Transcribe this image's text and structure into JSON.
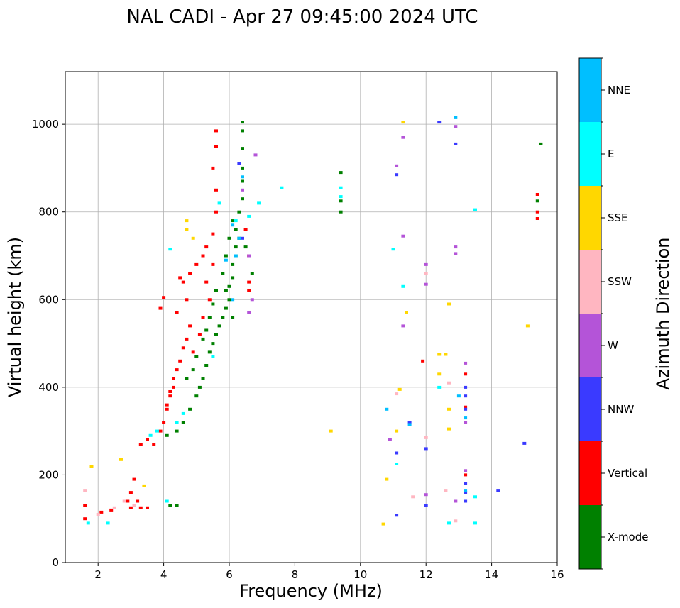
{
  "chart_data": {
    "type": "scatter",
    "title": "NAL CADI - Apr 27 09:45:00 2024 UTC",
    "xlabel": "Frequency (MHz)",
    "ylabel": "Virtual height (km)",
    "xlim": [
      1,
      16
    ],
    "ylim": [
      0,
      1120
    ],
    "xticks": [
      2,
      4,
      6,
      8,
      10,
      12,
      14,
      16
    ],
    "yticks": [
      0,
      200,
      400,
      600,
      800,
      1000
    ],
    "grid": true,
    "colorbar": {
      "label": "Azimuth Direction",
      "categories": [
        "X-mode",
        "Vertical",
        "NNW",
        "W",
        "SSW",
        "SSE",
        "E",
        "NNE"
      ],
      "colors": [
        "#008000",
        "#ff0000",
        "#3a3aff",
        "#b454d8",
        "#ffb6c1",
        "#ffd700",
        "#00ffff",
        "#00bfff"
      ]
    },
    "series": [
      {
        "name": "X-mode",
        "points": [
          [
            4.2,
            130
          ],
          [
            4.4,
            130
          ],
          [
            4.1,
            290
          ],
          [
            4.4,
            300
          ],
          [
            4.6,
            320
          ],
          [
            4.8,
            350
          ],
          [
            5.0,
            380
          ],
          [
            5.1,
            400
          ],
          [
            5.2,
            420
          ],
          [
            5.3,
            450
          ],
          [
            5.4,
            480
          ],
          [
            5.5,
            500
          ],
          [
            5.6,
            520
          ],
          [
            5.7,
            540
          ],
          [
            5.8,
            560
          ],
          [
            5.9,
            580
          ],
          [
            6.0,
            600
          ],
          [
            6.0,
            630
          ],
          [
            6.1,
            650
          ],
          [
            6.1,
            680
          ],
          [
            6.2,
            700
          ],
          [
            6.2,
            720
          ],
          [
            6.3,
            740
          ],
          [
            6.2,
            760
          ],
          [
            6.1,
            780
          ],
          [
            6.3,
            800
          ],
          [
            6.4,
            830
          ],
          [
            6.4,
            870
          ],
          [
            6.4,
            900
          ],
          [
            6.4,
            945
          ],
          [
            6.4,
            985
          ],
          [
            6.4,
            1005
          ],
          [
            5.9,
            700
          ],
          [
            5.8,
            660
          ],
          [
            5.6,
            620
          ],
          [
            5.5,
            590
          ],
          [
            5.4,
            560
          ],
          [
            5.3,
            530
          ],
          [
            5.2,
            510
          ],
          [
            5.0,
            470
          ],
          [
            4.9,
            440
          ],
          [
            4.7,
            420
          ],
          [
            5.9,
            620
          ],
          [
            6.1,
            560
          ],
          [
            6.0,
            740
          ],
          [
            6.5,
            720
          ],
          [
            6.7,
            660
          ],
          [
            9.4,
            890
          ],
          [
            9.4,
            825
          ],
          [
            9.4,
            800
          ],
          [
            15.4,
            825
          ],
          [
            15.5,
            955
          ]
        ]
      },
      {
        "name": "Vertical",
        "points": [
          [
            1.6,
            100
          ],
          [
            1.6,
            130
          ],
          [
            2.1,
            115
          ],
          [
            2.4,
            120
          ],
          [
            2.9,
            140
          ],
          [
            3.0,
            160
          ],
          [
            3.1,
            190
          ],
          [
            3.2,
            140
          ],
          [
            3.3,
            125
          ],
          [
            3.5,
            125
          ],
          [
            3.0,
            125
          ],
          [
            3.3,
            270
          ],
          [
            3.5,
            280
          ],
          [
            3.7,
            270
          ],
          [
            3.9,
            300
          ],
          [
            4.0,
            320
          ],
          [
            4.1,
            350
          ],
          [
            4.2,
            380
          ],
          [
            4.3,
            400
          ],
          [
            4.4,
            440
          ],
          [
            4.5,
            460
          ],
          [
            4.6,
            490
          ],
          [
            4.7,
            510
          ],
          [
            4.8,
            540
          ],
          [
            4.4,
            570
          ],
          [
            4.7,
            600
          ],
          [
            4.6,
            640
          ],
          [
            4.8,
            660
          ],
          [
            5.0,
            680
          ],
          [
            5.2,
            700
          ],
          [
            5.3,
            720
          ],
          [
            5.5,
            750
          ],
          [
            5.6,
            800
          ],
          [
            5.6,
            850
          ],
          [
            5.5,
            900
          ],
          [
            5.6,
            950
          ],
          [
            5.6,
            985
          ],
          [
            4.0,
            605
          ],
          [
            3.9,
            580
          ],
          [
            4.9,
            480
          ],
          [
            5.1,
            520
          ],
          [
            5.2,
            560
          ],
          [
            5.4,
            600
          ],
          [
            5.3,
            640
          ],
          [
            5.5,
            680
          ],
          [
            4.5,
            650
          ],
          [
            4.3,
            420
          ],
          [
            4.1,
            360
          ],
          [
            4.2,
            390
          ],
          [
            6.5,
            760
          ],
          [
            6.6,
            700
          ],
          [
            6.6,
            640
          ],
          [
            6.6,
            620
          ],
          [
            15.4,
            840
          ],
          [
            15.4,
            800
          ],
          [
            15.4,
            785
          ],
          [
            13.2,
            200
          ],
          [
            13.2,
            355
          ],
          [
            13.2,
            430
          ],
          [
            11.9,
            460
          ]
        ]
      },
      {
        "name": "NNW",
        "points": [
          [
            6.3,
            910
          ],
          [
            6.4,
            740
          ],
          [
            11.1,
            885
          ],
          [
            12.4,
            1005
          ],
          [
            12.9,
            955
          ],
          [
            13.2,
            400
          ],
          [
            13.2,
            380
          ],
          [
            13.2,
            350
          ],
          [
            13.2,
            180
          ],
          [
            13.2,
            160
          ],
          [
            13.2,
            140
          ],
          [
            14.2,
            165
          ],
          [
            15.0,
            272
          ],
          [
            11.1,
            250
          ],
          [
            11.5,
            320
          ],
          [
            12.0,
            130
          ],
          [
            12.0,
            260
          ],
          [
            11.1,
            108
          ]
        ]
      },
      {
        "name": "W",
        "points": [
          [
            6.4,
            850
          ],
          [
            6.6,
            700
          ],
          [
            6.7,
            600
          ],
          [
            6.6,
            570
          ],
          [
            6.8,
            930
          ],
          [
            11.1,
            905
          ],
          [
            11.3,
            970
          ],
          [
            11.3,
            745
          ],
          [
            11.3,
            540
          ],
          [
            10.9,
            280
          ],
          [
            12.0,
            680
          ],
          [
            12.0,
            635
          ],
          [
            12.0,
            155
          ],
          [
            12.9,
            720
          ],
          [
            12.9,
            705
          ],
          [
            12.9,
            995
          ],
          [
            13.2,
            455
          ],
          [
            13.2,
            320
          ],
          [
            13.2,
            210
          ],
          [
            12.9,
            140
          ]
        ]
      },
      {
        "name": "SSW",
        "points": [
          [
            1.6,
            165
          ],
          [
            2.0,
            110
          ],
          [
            2.5,
            125
          ],
          [
            2.8,
            140
          ],
          [
            3.1,
            130
          ],
          [
            11.1,
            385
          ],
          [
            11.6,
            150
          ],
          [
            12.0,
            660
          ],
          [
            12.0,
            285
          ],
          [
            12.7,
            410
          ],
          [
            12.6,
            165
          ],
          [
            12.9,
            95
          ]
        ]
      },
      {
        "name": "SSE",
        "points": [
          [
            1.8,
            220
          ],
          [
            2.7,
            235
          ],
          [
            3.4,
            175
          ],
          [
            4.7,
            780
          ],
          [
            4.7,
            760
          ],
          [
            4.9,
            740
          ],
          [
            10.8,
            190
          ],
          [
            10.7,
            88
          ],
          [
            11.3,
            1005
          ],
          [
            11.4,
            570
          ],
          [
            11.1,
            300
          ],
          [
            11.2,
            395
          ],
          [
            12.4,
            475
          ],
          [
            12.6,
            475
          ],
          [
            12.4,
            430
          ],
          [
            12.7,
            590
          ],
          [
            12.7,
            305
          ],
          [
            12.7,
            350
          ],
          [
            9.1,
            300
          ],
          [
            15.1,
            540
          ]
        ]
      },
      {
        "name": "E",
        "points": [
          [
            1.7,
            90
          ],
          [
            2.3,
            90
          ],
          [
            3.6,
            290
          ],
          [
            3.8,
            300
          ],
          [
            4.2,
            715
          ],
          [
            4.1,
            140
          ],
          [
            4.4,
            320
          ],
          [
            4.6,
            340
          ],
          [
            5.5,
            470
          ],
          [
            5.7,
            820
          ],
          [
            6.2,
            780
          ],
          [
            6.6,
            790
          ],
          [
            6.9,
            820
          ],
          [
            7.6,
            855
          ],
          [
            9.4,
            855
          ],
          [
            9.4,
            835
          ],
          [
            11.0,
            715
          ],
          [
            11.3,
            630
          ],
          [
            11.1,
            225
          ],
          [
            12.7,
            90
          ],
          [
            13.5,
            90
          ],
          [
            13.5,
            805
          ],
          [
            13.5,
            150
          ],
          [
            12.4,
            400
          ]
        ]
      },
      {
        "name": "NNE",
        "points": [
          [
            6.1,
            770
          ],
          [
            6.4,
            880
          ],
          [
            6.3,
            740
          ],
          [
            6.1,
            600
          ],
          [
            6.2,
            700
          ],
          [
            11.5,
            315
          ],
          [
            10.8,
            350
          ],
          [
            13.2,
            330
          ],
          [
            13.2,
            165
          ],
          [
            12.9,
            1015
          ],
          [
            13.0,
            380
          ],
          [
            5.9,
            690
          ]
        ]
      }
    ]
  }
}
